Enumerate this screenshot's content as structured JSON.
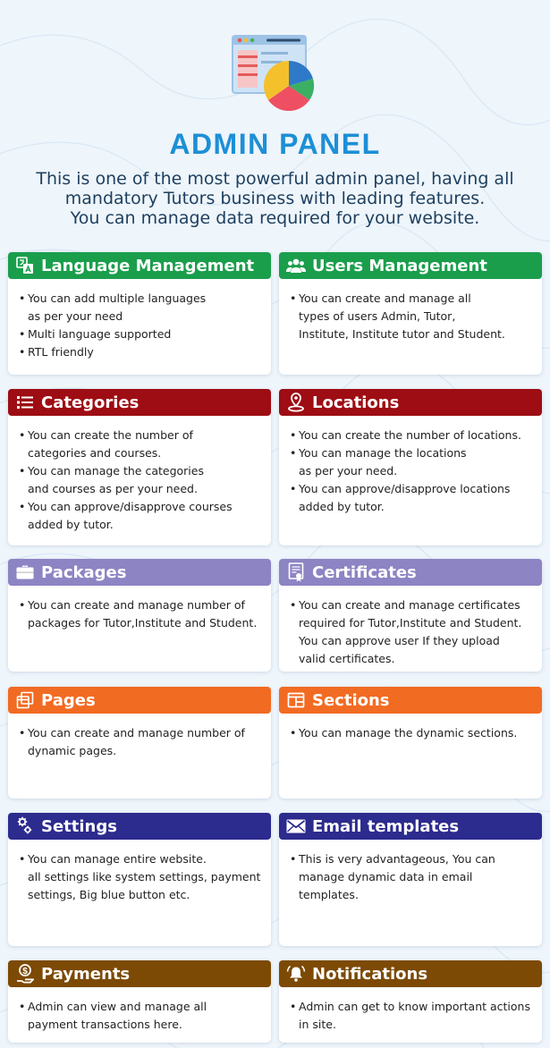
{
  "header": {
    "title": "ADMIN PANEL",
    "subtitle_lines": [
      "This is one of the most powerful admin panel, having all",
      "mandatory Tutors business with leading features.",
      "You can manage data required for your website."
    ]
  },
  "colors": {
    "title": "#1d8fd6",
    "green": "#1a9e4c",
    "maroon": "#9d0d13",
    "lavender": "#8d84c4",
    "orange": "#f26b22",
    "navy": "#2c2b8e",
    "brown": "#7c4a05"
  },
  "cards": [
    {
      "title": "Language Management",
      "icon": "language-icon",
      "color": "#1a9e4c",
      "items": [
        [
          "You can add multiple languages",
          "as per your need"
        ],
        [
          "Multi language supported"
        ],
        [
          "RTL friendly"
        ]
      ]
    },
    {
      "title": "Users Management",
      "icon": "users-icon",
      "color": "#1a9e4c",
      "items": [
        [
          "You can create and manage all",
          "types of users Admin, Tutor,",
          "Institute, Institute tutor and Student."
        ]
      ]
    },
    {
      "title": "Categories",
      "icon": "list-icon",
      "color": "#9d0d13",
      "items": [
        [
          "You can create the number of",
          "categories and courses."
        ],
        [
          "You can manage the categories",
          "and courses as per your need."
        ],
        [
          "You can approve/disapprove courses",
          "added by tutor."
        ]
      ]
    },
    {
      "title": "Locations",
      "icon": "location-pin-icon",
      "color": "#9d0d13",
      "items": [
        [
          "You can create the number of locations."
        ],
        [
          "You can manage the locations",
          "as per your need."
        ],
        [
          "You can approve/disapprove locations",
          "added by tutor."
        ]
      ]
    },
    {
      "title": "Packages",
      "icon": "briefcase-icon",
      "color": "#8d84c4",
      "items": [
        [
          "You can create and manage number of",
          "packages for Tutor,Institute and Student."
        ]
      ]
    },
    {
      "title": "Certificates",
      "icon": "certificate-icon",
      "color": "#8d84c4",
      "items": [
        [
          "You can create and manage certificates",
          "required for Tutor,Institute and Student.",
          "You can approve user If they upload",
          "valid certificates."
        ]
      ]
    },
    {
      "title": "Pages",
      "icon": "pages-icon",
      "color": "#f26b22",
      "items": [
        [
          "You can create and manage number of",
          "dynamic pages."
        ]
      ]
    },
    {
      "title": "Sections",
      "icon": "sections-icon",
      "color": "#f26b22",
      "items": [
        [
          "You can manage the dynamic sections."
        ]
      ]
    },
    {
      "title": "Settings",
      "icon": "gears-icon",
      "color": "#2c2b8e",
      "items": [
        [
          "You can manage entire website.",
          "all settings like system settings, payment",
          "settings, Big blue button etc."
        ]
      ]
    },
    {
      "title": "Email templates",
      "icon": "envelope-icon",
      "color": "#2c2b8e",
      "items": [
        [
          "This is very advantageous, You can",
          "manage dynamic data in email",
          "templates."
        ]
      ]
    },
    {
      "title": "Payments",
      "icon": "money-hand-icon",
      "color": "#7c4a05",
      "items": [
        [
          "Admin can view and manage all",
          "payment transactions here."
        ]
      ]
    },
    {
      "title": "Notifications",
      "icon": "bell-icon",
      "color": "#7c4a05",
      "items": [
        [
          "Admin can get to know important actions",
          "in site."
        ]
      ]
    }
  ]
}
